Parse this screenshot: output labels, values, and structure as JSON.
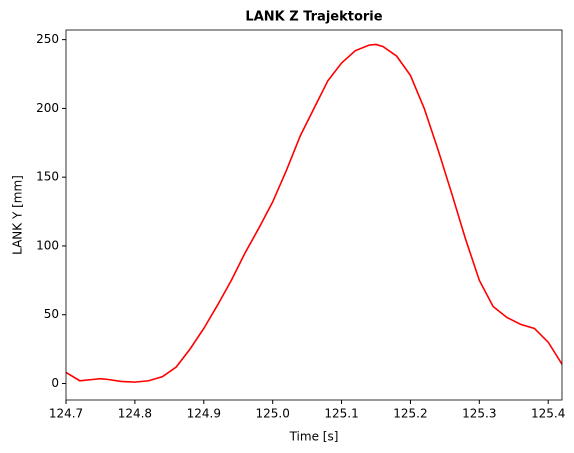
{
  "chart_data": {
    "type": "line",
    "title": "LANK Z Trajektorie",
    "x_label": "Time [s]",
    "y_label": "LANK Y [mm]",
    "x": [
      124.7,
      124.72,
      124.74,
      124.75,
      124.76,
      124.78,
      124.8,
      124.82,
      124.84,
      124.86,
      124.88,
      124.9,
      124.92,
      124.94,
      124.96,
      124.98,
      125.0,
      125.02,
      125.04,
      125.06,
      125.08,
      125.1,
      125.12,
      125.14,
      125.15,
      125.16,
      125.18,
      125.2,
      125.22,
      125.24,
      125.26,
      125.28,
      125.3,
      125.32,
      125.34,
      125.36,
      125.38,
      125.4,
      125.42
    ],
    "series": [
      {
        "name": "LANK Y",
        "color": "#ff0000",
        "values": [
          8,
          2,
          3,
          3.5,
          3,
          1.5,
          1,
          2,
          5,
          12,
          25,
          40,
          57,
          75,
          95,
          113,
          132,
          155,
          180,
          200,
          220,
          233,
          242,
          246,
          246.5,
          245,
          238,
          224,
          200,
          170,
          138,
          105,
          75,
          56,
          48,
          43,
          40,
          30,
          14
        ]
      }
    ],
    "xlim": [
      124.7,
      125.42
    ],
    "ylim": [
      -12,
      257
    ],
    "xticks": [
      124.7,
      124.8,
      124.9,
      {
        "value": 125,
        "label": "125.0"
      },
      125.1,
      125.2,
      125.3,
      125.4
    ],
    "yticks": [
      0,
      50,
      100,
      150,
      200,
      250
    ],
    "grid": false
  }
}
